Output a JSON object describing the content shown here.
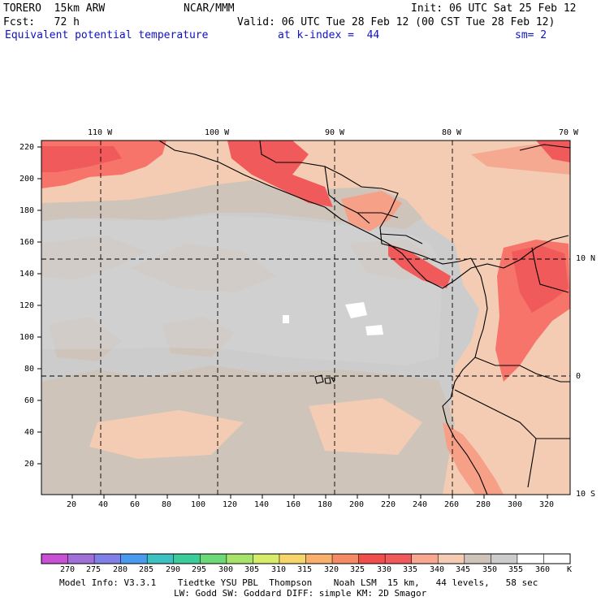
{
  "header": {
    "model": "TORERO  15km ARW",
    "center": "NCAR/MMM",
    "init": "Init: 06 UTC Sat 25 Feb 12",
    "fcst": "Fcst:   72 h",
    "valid": "Valid: 06 UTC Tue 28 Feb 12 (00 CST Tue 28 Feb 12)",
    "field": "Equivalent potential temperature",
    "level": "at k-index =  44",
    "smooth": "sm= 2"
  },
  "map": {
    "lon_labels": [
      "110 W",
      "100 W",
      "90 W",
      "80 W",
      "70 W"
    ],
    "lat_labels": [
      "10 N",
      "0",
      "10 S"
    ],
    "x_ticks": [
      "20",
      "40",
      "60",
      "80",
      "100",
      "120",
      "140",
      "160",
      "180",
      "200",
      "220",
      "240",
      "260",
      "280",
      "300",
      "320"
    ],
    "y_ticks": [
      "220",
      "200",
      "180",
      "160",
      "140",
      "120",
      "100",
      "80",
      "60",
      "40",
      "20"
    ]
  },
  "colorbar": {
    "labels": [
      "270",
      "275",
      "280",
      "285",
      "290",
      "295",
      "300",
      "305",
      "310",
      "315",
      "320",
      "325",
      "330",
      "335",
      "340",
      "345",
      "350",
      "355",
      "360"
    ],
    "unit": "K",
    "colors": [
      "#c850d2",
      "#a070d8",
      "#8080e8",
      "#4a9aee",
      "#3cc0c0",
      "#3ccc9a",
      "#6cd878",
      "#a6e46a",
      "#d8ec6c",
      "#f6d66a",
      "#f8b06c",
      "#f68a64",
      "#f0504c",
      "#f05a5a",
      "#f8a890",
      "#f4ccb4",
      "#cfc4ba",
      "#cccccc",
      "#ffffff",
      "#ffffff"
    ]
  },
  "footer": {
    "line1": "Model Info: V3.3.1    Tiedtke YSU PBL  Thompson    Noah LSM  15 km,   44 levels,   58 sec",
    "line2": "LW: Godd SW: Goddard DIFF: simple KM: 2D Smagor"
  }
}
